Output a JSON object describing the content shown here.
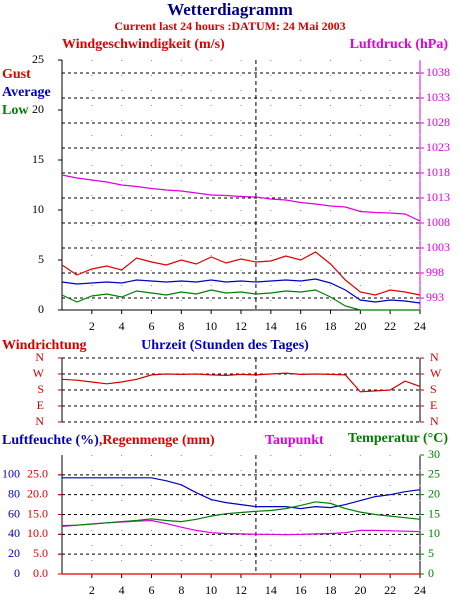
{
  "chart_data": [
    {
      "type": "line",
      "title": "Wetterdiagramm",
      "subtitle": "Current last 24 hours :DATUM: 24 Mai 2003",
      "ylabel": "Windgeschwindigkeit (m/s)",
      "x": [
        0,
        1,
        2,
        3,
        4,
        5,
        6,
        7,
        8,
        9,
        10,
        11,
        12,
        13,
        14,
        15,
        16,
        17,
        18,
        19,
        20,
        21,
        22,
        23,
        24
      ],
      "xlim": [
        0,
        24
      ],
      "xticks": [
        2,
        4,
        6,
        8,
        10,
        12,
        14,
        16,
        18,
        20,
        22,
        24
      ],
      "ylim": [
        0,
        25
      ],
      "yticks": [
        0,
        5,
        10,
        15,
        20,
        25
      ],
      "y2lim": [
        990.6,
        1040.6
      ],
      "y2ticks": [
        993,
        998,
        1003,
        1008,
        1013,
        1018,
        1023,
        1028,
        1033,
        1038
      ],
      "vline": 13,
      "grid": true,
      "series": [
        {
          "name": "Gust",
          "color": "#e00000",
          "values": [
            4.5,
            3.5,
            4.1,
            4.4,
            4.0,
            5.2,
            4.8,
            4.5,
            5.0,
            4.6,
            5.3,
            4.7,
            5.1,
            4.8,
            4.9,
            5.4,
            5.0,
            5.8,
            4.6,
            3.0,
            1.8,
            1.5,
            2.0,
            1.8,
            1.5
          ]
        },
        {
          "name": "Average",
          "color": "#0000c0",
          "values": [
            2.8,
            2.6,
            2.7,
            2.8,
            2.7,
            3.0,
            2.9,
            2.8,
            2.9,
            2.8,
            3.0,
            2.8,
            2.9,
            2.8,
            2.9,
            3.0,
            2.9,
            3.1,
            2.7,
            2.0,
            1.0,
            0.8,
            1.0,
            0.9,
            0.7
          ]
        },
        {
          "name": "Low",
          "color": "#008000",
          "values": [
            1.5,
            0.8,
            1.4,
            1.6,
            1.3,
            1.9,
            1.7,
            1.5,
            1.8,
            1.6,
            2.0,
            1.7,
            1.8,
            1.6,
            1.7,
            1.9,
            1.8,
            2.0,
            1.3,
            0.4,
            0,
            0,
            0,
            0,
            0
          ]
        },
        {
          "name": "Luftdruck (hPa)",
          "color": "#e000e0",
          "axis": "y2",
          "values": [
            1017.6,
            1017.0,
            1016.6,
            1016.2,
            1015.6,
            1015.3,
            1014.9,
            1014.6,
            1014.4,
            1014.0,
            1013.6,
            1013.5,
            1013.3,
            1013.2,
            1012.8,
            1012.6,
            1012.1,
            1011.8,
            1011.4,
            1011.2,
            1010.3,
            1010.1,
            1010.0,
            1009.8,
            1008.4
          ]
        }
      ]
    },
    {
      "type": "line",
      "ylabel": "Windrichtung",
      "xlabel": "Uhrzeit (Stunden des Tages)",
      "x": [
        0,
        1,
        2,
        3,
        4,
        5,
        6,
        7,
        8,
        9,
        10,
        11,
        12,
        13,
        14,
        15,
        16,
        17,
        18,
        19,
        20,
        21,
        22,
        23,
        24
      ],
      "xlim": [
        0,
        24
      ],
      "ylim": [
        0,
        360
      ],
      "yticks": [
        {
          "value": 0,
          "label": "N"
        },
        {
          "value": 90,
          "label": "E"
        },
        {
          "value": 180,
          "label": "S"
        },
        {
          "value": 270,
          "label": "W"
        },
        {
          "value": 360,
          "label": "N"
        }
      ],
      "vline": 13,
      "grid": true,
      "color": "#d00000",
      "values": [
        240,
        235,
        225,
        215,
        225,
        240,
        265,
        270,
        268,
        270,
        265,
        262,
        268,
        265,
        270,
        275,
        268,
        270,
        268,
        265,
        170,
        175,
        180,
        230,
        200
      ]
    },
    {
      "type": "line",
      "x": [
        0,
        1,
        2,
        3,
        4,
        5,
        6,
        7,
        8,
        9,
        10,
        11,
        12,
        13,
        14,
        15,
        16,
        17,
        18,
        19,
        20,
        21,
        22,
        23,
        24
      ],
      "xlim": [
        0,
        24
      ],
      "xticks": [
        2,
        4,
        6,
        8,
        10,
        12,
        14,
        16,
        18,
        20,
        22,
        24
      ],
      "ylim": [
        0,
        120
      ],
      "yticks": [
        0,
        20,
        40,
        60,
        80,
        100
      ],
      "y2lim": [
        0,
        30
      ],
      "y2ticks": [
        0,
        5,
        10,
        15,
        20,
        25,
        30
      ],
      "y3lim": [
        0,
        30
      ],
      "y3ticks": [
        {
          "value": 0,
          "label": "0.0"
        },
        {
          "value": 5,
          "label": "5.0"
        },
        {
          "value": 10,
          "label": "10.0"
        },
        {
          "value": 15,
          "label": "15.0"
        },
        {
          "value": 20,
          "label": "20.0"
        },
        {
          "value": 25,
          "label": "25.0"
        }
      ],
      "vline": 13,
      "grid": true,
      "series": [
        {
          "name": "Luftfeuchte (%)",
          "color": "#0000c0",
          "values": [
            97,
            97,
            97,
            97,
            97,
            97,
            97,
            94,
            90,
            82,
            75,
            72,
            70,
            68,
            68,
            68,
            66,
            68,
            67,
            70,
            74,
            78,
            80,
            83,
            85
          ]
        },
        {
          "name": ",Regenmenge (mm)",
          "color": "#e00000",
          "axis": "y3",
          "values": [
            0,
            0,
            0,
            0,
            0,
            0,
            0,
            0,
            0,
            0,
            0,
            0,
            0,
            0,
            0,
            0,
            0,
            0,
            0,
            0,
            0,
            0,
            0,
            0,
            0
          ]
        },
        {
          "name": "Taupunkt",
          "color": "#e000e0",
          "axis": "y2",
          "values": [
            12.0,
            12.3,
            12.6,
            12.9,
            13.1,
            13.3,
            13.5,
            12.7,
            11.8,
            11.0,
            10.4,
            10.2,
            10.1,
            10.0,
            10.0,
            9.9,
            10.0,
            10.1,
            10.2,
            10.4,
            11.0,
            11.0,
            10.9,
            10.8,
            10.7
          ]
        },
        {
          "name": "Temperatur (°C)",
          "color": "#008000",
          "axis": "y2",
          "values": [
            12.2,
            12.3,
            12.6,
            12.9,
            13.2,
            13.5,
            13.9,
            13.5,
            13.2,
            13.8,
            14.6,
            15.2,
            15.5,
            15.8,
            16.0,
            16.5,
            17.3,
            18.2,
            17.8,
            16.5,
            15.6,
            15.0,
            14.6,
            14.2,
            13.8
          ]
        }
      ]
    }
  ]
}
